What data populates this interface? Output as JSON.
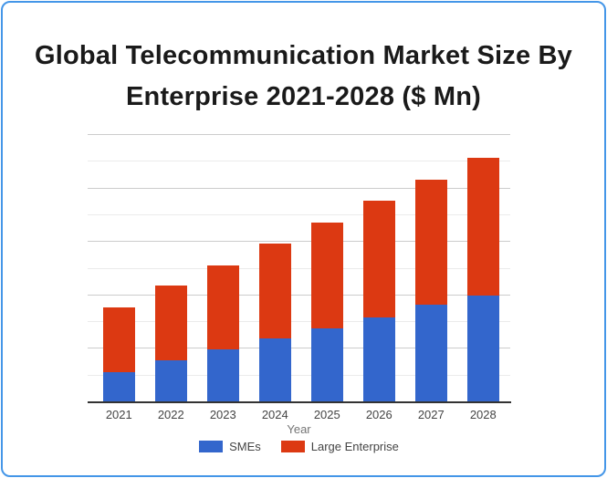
{
  "card": {
    "title_lines": [
      "Global Telecommunication Market Size By",
      "Enterprise 2021-2028 ($ Mn)"
    ],
    "border_color": "#4496E8"
  },
  "chart_data": {
    "type": "bar",
    "stacked": true,
    "title": "Global Telecommunication Market Size By Enterprise 2021-2028 ($ Mn)",
    "categories": [
      "2021",
      "2022",
      "2023",
      "2024",
      "2025",
      "2026",
      "2027",
      "2028"
    ],
    "series": [
      {
        "name": "SMEs",
        "color": "#3366CC",
        "values": [
          570,
          785,
          995,
          1200,
          1380,
          1580,
          1820,
          2000
        ]
      },
      {
        "name": "Large Enterprise",
        "color": "#DC3912",
        "values": [
          1210,
          1395,
          1565,
          1770,
          1985,
          2190,
          2350,
          2580
        ]
      }
    ],
    "totals": [
      1780,
      2180,
      2560,
      2970,
      3365,
      3770,
      4170,
      4580
    ],
    "xlabel": "Year",
    "ylabel": "",
    "ylim": [
      0,
      5000
    ],
    "grid_step": 500,
    "major_step": 1000,
    "y_tick_labels_visible": false,
    "grid": true,
    "legend_position": "bottom",
    "axis_color": "#333333",
    "gridline_major_color": "#cccccc",
    "gridline_minor_color": "#ebebeb",
    "tick_label_color": "#444444"
  }
}
